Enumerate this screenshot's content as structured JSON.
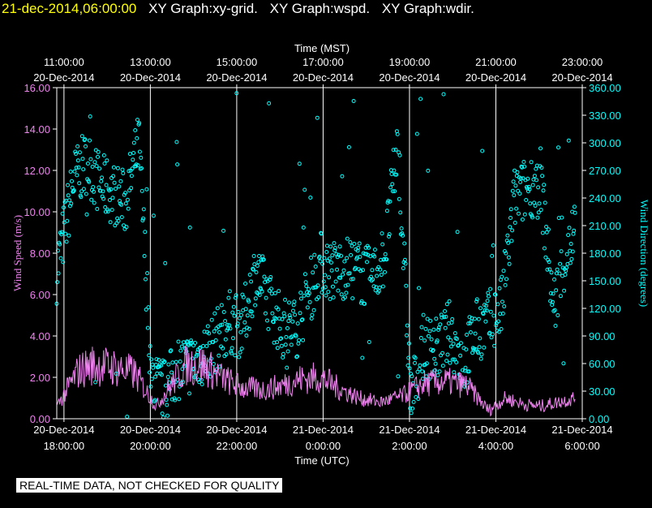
{
  "header": {
    "timestamp": "21-dec-2014,06:00:00",
    "graph_titles": [
      "XY Graph:xy-grid.",
      "XY Graph:wspd.",
      "XY Graph:wdir."
    ]
  },
  "footer": {
    "quality_note": "REAL-TIME DATA, NOT CHECKED FOR QUALITY"
  },
  "colors": {
    "wind_speed": "#ee82ee",
    "wind_direction": "#00ffff",
    "axis": "#ffffff",
    "grid": "#ffffff",
    "timestamp": "#ffff00"
  },
  "chart_data": {
    "type": "scatter",
    "top_axis": {
      "label": "Time (MST)",
      "ticks": [
        {
          "time": "11:00:00",
          "date": "20-Dec-2014"
        },
        {
          "time": "13:00:00",
          "date": "20-Dec-2014"
        },
        {
          "time": "15:00:00",
          "date": "20-Dec-2014"
        },
        {
          "time": "17:00:00",
          "date": "20-Dec-2014"
        },
        {
          "time": "19:00:00",
          "date": "20-Dec-2014"
        },
        {
          "time": "21:00:00",
          "date": "20-Dec-2014"
        },
        {
          "time": "23:00:00",
          "date": "20-Dec-2014"
        }
      ]
    },
    "bottom_axis": {
      "label": "Time (UTC)",
      "ticks": [
        {
          "date": "20-Dec-2014",
          "time": "18:00:00"
        },
        {
          "date": "20-Dec-2014",
          "time": "20:00:00"
        },
        {
          "date": "20-Dec-2014",
          "time": "22:00:00"
        },
        {
          "date": "21-Dec-2014",
          "time": "0:00:00"
        },
        {
          "date": "21-Dec-2014",
          "time": "2:00:00"
        },
        {
          "date": "21-Dec-2014",
          "time": "4:00:00"
        },
        {
          "date": "21-Dec-2014",
          "time": "6:00:00"
        }
      ],
      "range_utc": [
        "2014-12-20 17:50",
        "2014-12-21 06:00"
      ]
    },
    "left_axis": {
      "label": "Wind Speed (m/s)",
      "range": [
        0,
        16
      ],
      "ticks": [
        "0.00",
        "2.00",
        "4.00",
        "6.00",
        "8.00",
        "10.00",
        "12.00",
        "14.00",
        "16.00"
      ]
    },
    "right_axis": {
      "label": "Wind Direction (degrees)",
      "range": [
        0,
        360
      ],
      "ticks": [
        "0.00",
        "30.00",
        "60.00",
        "90.00",
        "120.00",
        "150.00",
        "180.00",
        "210.00",
        "240.00",
        "270.00",
        "300.00",
        "330.00",
        "360.00"
      ]
    },
    "grid": "vertical",
    "series": [
      {
        "name": "wspd",
        "style": "line",
        "hours_since_1750_utc": [
          0,
          0.5,
          0.8,
          1.3,
          1.8,
          2.3,
          2.6,
          3.0,
          3.4,
          3.8,
          4.3,
          4.8,
          5.2,
          5.6,
          6.1,
          6.5,
          7.0,
          7.5,
          8.0,
          8.5,
          9.0,
          9.5,
          10.0,
          10.4,
          10.8,
          11.2,
          11.6,
          12.0
        ],
        "values": [
          0.6,
          2.3,
          2.6,
          2.5,
          2.2,
          0.6,
          1.5,
          2.6,
          2.6,
          2.0,
          1.5,
          1.4,
          1.6,
          1.9,
          2.0,
          1.5,
          1.0,
          0.8,
          1.1,
          1.7,
          1.8,
          1.6,
          0.4,
          1.0,
          0.7,
          0.6,
          0.8,
          1.0
        ]
      },
      {
        "name": "wdir",
        "style": "scatter",
        "hours_since_1750_utc": [
          0,
          0.4,
          0.7,
          1.0,
          1.3,
          1.6,
          1.9,
          2.2,
          2.5,
          2.8,
          3.1,
          3.4,
          3.7,
          4.0,
          4.3,
          4.6,
          4.9,
          5.2,
          5.5,
          5.8,
          6.1,
          6.4,
          6.7,
          7.0,
          7.3,
          7.6,
          7.9,
          8.2,
          8.5,
          8.8,
          9.1,
          9.4,
          9.7,
          10.0,
          10.3,
          10.6,
          10.9,
          11.2,
          11.5,
          11.8,
          12.0
        ],
        "values": [
          160,
          260,
          280,
          255,
          245,
          235,
          300,
          40,
          30,
          55,
          60,
          70,
          85,
          105,
          100,
          160,
          130,
          100,
          95,
          130,
          170,
          160,
          165,
          160,
          150,
          180,
          300,
          20,
          80,
          75,
          95,
          60,
          95,
          105,
          120,
          240,
          250,
          260,
          120,
          180,
          205
        ]
      }
    ]
  }
}
